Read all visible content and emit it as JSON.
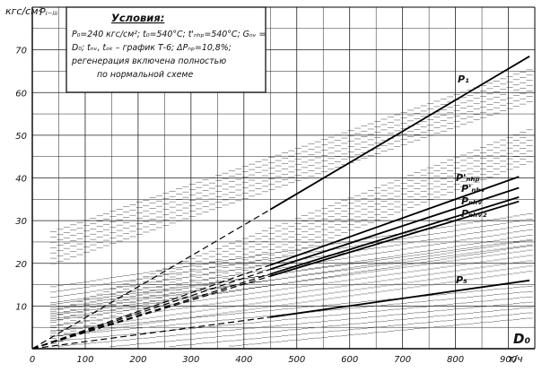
{
  "chart_data": {
    "type": "line",
    "title": "",
    "ylabel": "кгс/см²",
    "xlabel": "т/ч",
    "x_symbol": "D₀",
    "panel_label": "Pᵢ₋ᵢᵢᵢ",
    "xlim": [
      0,
      950
    ],
    "ylim": [
      0,
      80
    ],
    "x_ticks": [
      "0",
      "100",
      "200",
      "300",
      "400",
      "500",
      "600",
      "700",
      "800",
      "900"
    ],
    "y_ticks": [
      "10",
      "20",
      "30",
      "40",
      "50",
      "60",
      "70"
    ],
    "grid": true,
    "conditions": {
      "title": "Условия:",
      "lines": [
        "P₀=240 кгс/см²; t₀=540°C; t'ₙₕₚ=540°C; Gₙᵥ =",
        "D₀; tₙᵥ, tₒₖ – график Т-6; ΔPₙₚ=10,8%;",
        "регенерация включена полностью",
        "по нормальной схеме"
      ]
    },
    "series": [
      {
        "name": "P₁",
        "x": [
          0,
          450,
          940
        ],
        "y": [
          0,
          32.6,
          68.5
        ]
      },
      {
        "name": "P'ₙₕₚ",
        "x": [
          0,
          450,
          920
        ],
        "y": [
          0,
          19.6,
          40.3
        ]
      },
      {
        "name": "P'ₙₕᵥ",
        "x": [
          0,
          450,
          920
        ],
        "y": [
          0,
          18.6,
          37.7
        ]
      },
      {
        "name": "Pₙₕᵥ",
        "x": [
          0,
          450,
          920
        ],
        "y": [
          0,
          17.5,
          35.5
        ]
      },
      {
        "name": "Pₙₕᵥ₂",
        "x": [
          0,
          450,
          920
        ],
        "y": [
          0,
          17.0,
          34.5
        ]
      },
      {
        "name": "P₅",
        "x": [
          0,
          450,
          940
        ],
        "y": [
          0,
          7.4,
          16.0
        ]
      }
    ]
  }
}
